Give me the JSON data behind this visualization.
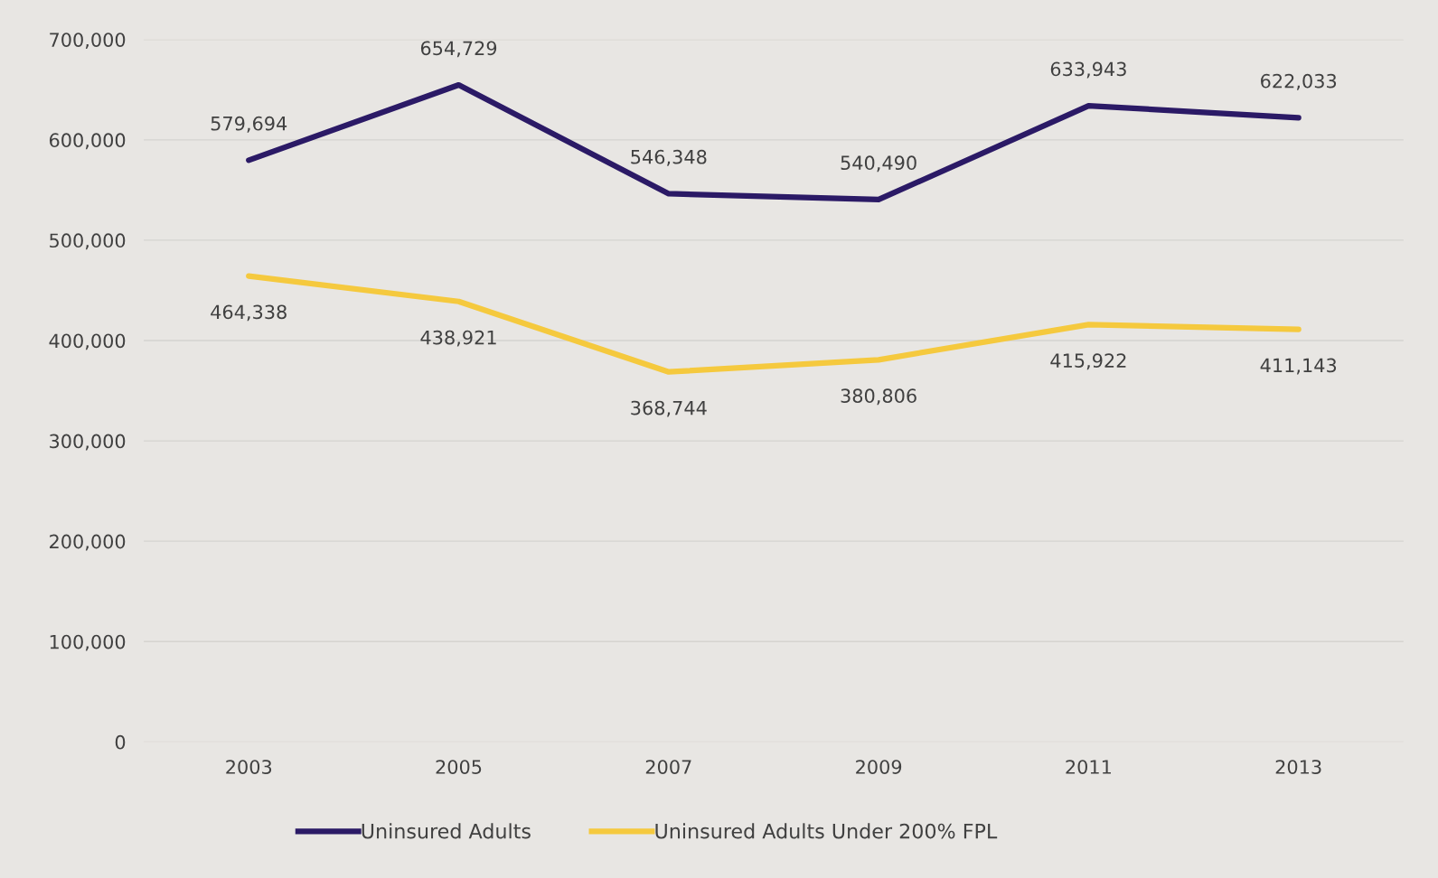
{
  "chart_data": {
    "type": "line",
    "categories": [
      "2003",
      "2005",
      "2007",
      "2009",
      "2011",
      "2013"
    ],
    "series": [
      {
        "name": "Uninsured Adults",
        "color": "#2b1a66",
        "values": [
          579694,
          654729,
          546348,
          540490,
          633943,
          622033
        ],
        "value_labels": [
          "579,694",
          "654,729",
          "546,348",
          "540,490",
          "633,943",
          "622,033"
        ]
      },
      {
        "name": "Uninsured Adults Under 200% FPL",
        "color": "#f5c93e",
        "values": [
          464338,
          438921,
          368744,
          380806,
          415922,
          411143
        ],
        "value_labels": [
          "464,338",
          "438,921",
          "368,744",
          "380,806",
          "415,922",
          "411,143"
        ]
      }
    ],
    "ylim": [
      0,
      700000
    ],
    "yticks": [
      {
        "value": 0,
        "label": "0"
      },
      {
        "value": 100000,
        "label": "100,000"
      },
      {
        "value": 200000,
        "label": "200,000"
      },
      {
        "value": 300000,
        "label": "300,000"
      },
      {
        "value": 400000,
        "label": "400,000"
      },
      {
        "value": 500000,
        "label": "500,000"
      },
      {
        "value": 600000,
        "label": "600,000"
      },
      {
        "value": 700000,
        "label": "700,000"
      }
    ],
    "grid": "y",
    "legend": "bottom",
    "marker": "none",
    "line_style": "solid"
  }
}
